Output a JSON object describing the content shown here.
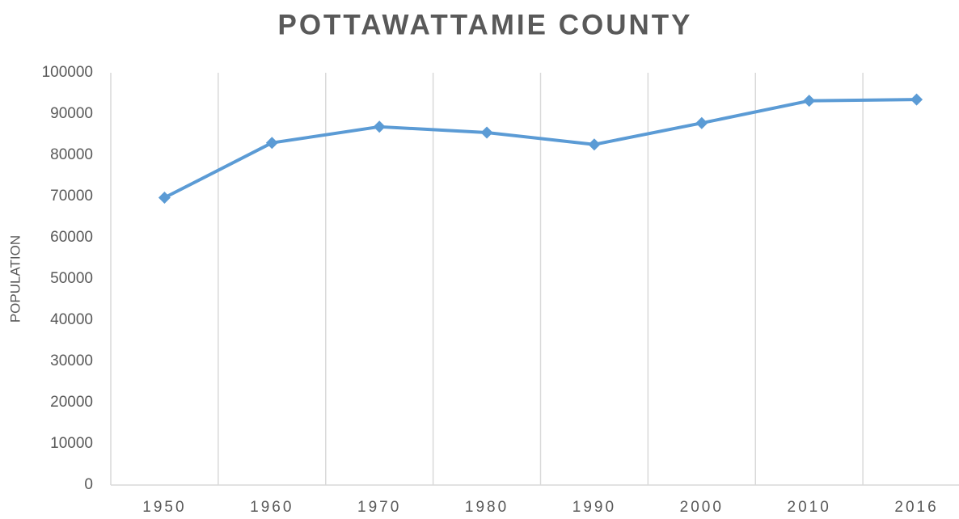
{
  "chart_data": {
    "type": "line",
    "title": "POTTAWATTAMIE COUNTY",
    "y_label": "POPULATION",
    "categories": [
      "1950",
      "1960",
      "1970",
      "1980",
      "1990",
      "2000",
      "2010",
      "2016"
    ],
    "series": [
      {
        "name": "Population",
        "color": "#5b9bd5",
        "values": [
          69700,
          83000,
          86900,
          85500,
          82600,
          87800,
          93200,
          93500
        ]
      }
    ],
    "ylim": [
      0,
      100000
    ],
    "yticks": [
      0,
      10000,
      20000,
      30000,
      40000,
      50000,
      60000,
      70000,
      80000,
      90000,
      100000
    ],
    "grid": "x"
  }
}
